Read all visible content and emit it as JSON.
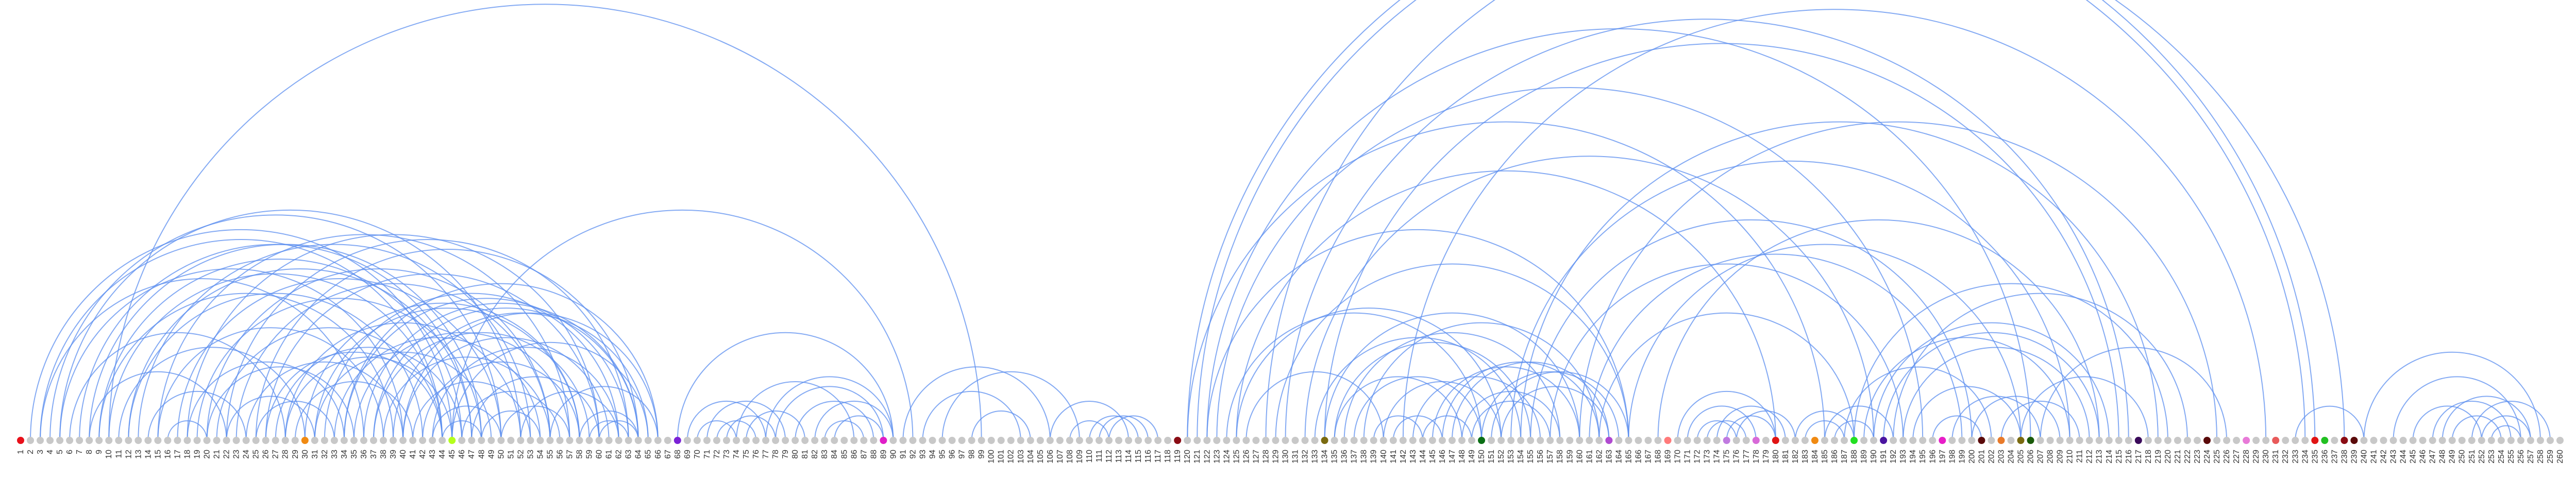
{
  "diagram": {
    "type": "arc-diagram",
    "node_count": 260,
    "colors": {
      "default_node": "#c8c8c8",
      "arc": "#5b8def"
    },
    "colored_nodes": [
      {
        "id": 1,
        "color": "#e8101a"
      },
      {
        "id": 30,
        "color": "#f08a12"
      },
      {
        "id": 45,
        "color": "#b5ff1c"
      },
      {
        "id": 68,
        "color": "#7b22d6"
      },
      {
        "id": 89,
        "color": "#e01ec8"
      },
      {
        "id": 119,
        "color": "#8a0c14"
      },
      {
        "id": 134,
        "color": "#7a6a10"
      },
      {
        "id": 150,
        "color": "#0a6e14"
      },
      {
        "id": 163,
        "color": "#b04ad0"
      },
      {
        "id": 169,
        "color": "#ff7a7a"
      },
      {
        "id": 175,
        "color": "#c07ae0"
      },
      {
        "id": 178,
        "color": "#d86ad8"
      },
      {
        "id": 180,
        "color": "#e01414"
      },
      {
        "id": 184,
        "color": "#f08a12"
      },
      {
        "id": 188,
        "color": "#22e022"
      },
      {
        "id": 191,
        "color": "#4a14a0"
      },
      {
        "id": 197,
        "color": "#e81ec8"
      },
      {
        "id": 201,
        "color": "#5a0a0a"
      },
      {
        "id": 203,
        "color": "#e87a2a"
      },
      {
        "id": 205,
        "color": "#7a6a10"
      },
      {
        "id": 206,
        "color": "#1a5a0a"
      },
      {
        "id": 217,
        "color": "#3a0a5a"
      },
      {
        "id": 224,
        "color": "#5a0a0a"
      },
      {
        "id": 228,
        "color": "#e87ad8"
      },
      {
        "id": 231,
        "color": "#e85a5a"
      },
      {
        "id": 235,
        "color": "#e01414"
      },
      {
        "id": 236,
        "color": "#22c022"
      },
      {
        "id": 238,
        "color": "#8a0c14"
      },
      {
        "id": 239,
        "color": "#5a0a0a"
      }
    ],
    "links": [
      [
        2,
        45
      ],
      [
        3,
        36
      ],
      [
        4,
        50
      ],
      [
        5,
        40
      ],
      [
        6,
        28
      ],
      [
        7,
        47
      ],
      [
        8,
        22
      ],
      [
        9,
        39
      ],
      [
        10,
        44
      ],
      [
        11,
        30
      ],
      [
        12,
        42
      ],
      [
        13,
        53
      ],
      [
        14,
        24
      ],
      [
        15,
        38
      ],
      [
        16,
        20
      ],
      [
        17,
        50
      ],
      [
        18,
        34
      ],
      [
        19,
        48
      ],
      [
        20,
        35
      ],
      [
        21,
        44
      ],
      [
        22,
        31
      ],
      [
        23,
        55
      ],
      [
        24,
        40
      ],
      [
        25,
        33
      ],
      [
        26,
        60
      ],
      [
        27,
        46
      ],
      [
        28,
        52
      ],
      [
        29,
        41
      ],
      [
        30,
        58
      ],
      [
        31,
        49
      ],
      [
        32,
        62
      ],
      [
        33,
        54
      ],
      [
        34,
        63
      ],
      [
        35,
        57
      ],
      [
        36,
        64
      ],
      [
        37,
        59
      ],
      [
        38,
        55
      ],
      [
        39,
        65
      ],
      [
        40,
        61
      ],
      [
        41,
        53
      ],
      [
        42,
        58
      ],
      [
        43,
        50
      ],
      [
        44,
        48
      ],
      [
        45,
        65
      ],
      [
        46,
        56
      ],
      [
        47,
        60
      ],
      [
        48,
        54
      ],
      [
        50,
        57
      ],
      [
        52,
        62
      ],
      [
        55,
        66
      ],
      [
        5,
        52
      ],
      [
        8,
        48
      ],
      [
        12,
        47
      ],
      [
        15,
        57
      ],
      [
        18,
        60
      ],
      [
        20,
        55
      ],
      [
        22,
        63
      ],
      [
        3,
        44
      ],
      [
        9,
        46
      ],
      [
        25,
        64
      ],
      [
        26,
        44
      ],
      [
        28,
        45
      ],
      [
        31,
        58
      ],
      [
        34,
        66
      ],
      [
        37,
        64
      ],
      [
        40,
        66
      ],
      [
        43,
        62
      ],
      [
        58,
        64
      ],
      [
        59,
        63
      ],
      [
        60,
        64
      ],
      [
        10,
        99
      ],
      [
        45,
        92
      ],
      [
        68,
        90
      ],
      [
        69,
        77
      ],
      [
        70,
        74
      ],
      [
        71,
        79
      ],
      [
        72,
        76
      ],
      [
        73,
        78
      ],
      [
        74,
        86
      ],
      [
        75,
        81
      ],
      [
        77,
        90
      ],
      [
        78,
        89
      ],
      [
        80,
        88
      ],
      [
        82,
        90
      ],
      [
        83,
        87
      ],
      [
        84,
        89
      ],
      [
        91,
        106
      ],
      [
        93,
        103
      ],
      [
        95,
        109
      ],
      [
        98,
        104
      ],
      [
        106,
        114
      ],
      [
        108,
        112
      ],
      [
        110,
        115
      ],
      [
        111,
        116
      ],
      [
        112,
        117
      ],
      [
        120,
        235
      ],
      [
        120,
        185
      ],
      [
        121,
        234
      ],
      [
        122,
        206
      ],
      [
        122,
        165
      ],
      [
        123,
        195
      ],
      [
        124,
        150
      ],
      [
        125,
        152
      ],
      [
        125,
        180
      ],
      [
        126,
        140
      ],
      [
        128,
        238
      ],
      [
        129,
        165
      ],
      [
        130,
        216
      ],
      [
        132,
        190
      ],
      [
        133,
        154
      ],
      [
        134,
        160
      ],
      [
        134,
        215
      ],
      [
        135,
        155
      ],
      [
        135,
        148
      ],
      [
        136,
        158
      ],
      [
        137,
        150
      ],
      [
        138,
        162
      ],
      [
        139,
        144
      ],
      [
        140,
        152
      ],
      [
        141,
        146
      ],
      [
        142,
        230
      ],
      [
        143,
        156
      ],
      [
        144,
        149
      ],
      [
        145,
        160
      ],
      [
        146,
        162
      ],
      [
        147,
        163
      ],
      [
        148,
        158
      ],
      [
        149,
        157
      ],
      [
        150,
        164
      ],
      [
        151,
        165
      ],
      [
        152,
        163
      ],
      [
        153,
        210
      ],
      [
        154,
        219
      ],
      [
        155,
        200
      ],
      [
        157,
        193
      ],
      [
        160,
        225
      ],
      [
        161,
        199
      ],
      [
        162,
        188
      ],
      [
        165,
        205
      ],
      [
        168,
        213
      ],
      [
        170,
        180
      ],
      [
        171,
        178
      ],
      [
        172,
        176
      ],
      [
        173,
        177
      ],
      [
        174,
        181
      ],
      [
        175,
        180
      ],
      [
        176,
        182
      ],
      [
        182,
        188
      ],
      [
        183,
        187
      ],
      [
        185,
        192
      ],
      [
        186,
        190
      ],
      [
        187,
        202
      ],
      [
        188,
        220
      ],
      [
        189,
        210
      ],
      [
        190,
        214
      ],
      [
        191,
        213
      ],
      [
        192,
        222
      ],
      [
        193,
        212
      ],
      [
        194,
        205
      ],
      [
        196,
        201
      ],
      [
        198,
        207
      ],
      [
        200,
        209
      ],
      [
        203,
        211
      ],
      [
        205,
        218
      ],
      [
        207,
        226
      ],
      [
        233,
        240
      ],
      [
        240,
        258
      ],
      [
        243,
        256
      ],
      [
        245,
        252
      ],
      [
        247,
        255
      ],
      [
        248,
        257
      ],
      [
        249,
        254
      ],
      [
        251,
        259
      ],
      [
        252,
        257
      ],
      [
        253,
        256
      ]
    ]
  }
}
